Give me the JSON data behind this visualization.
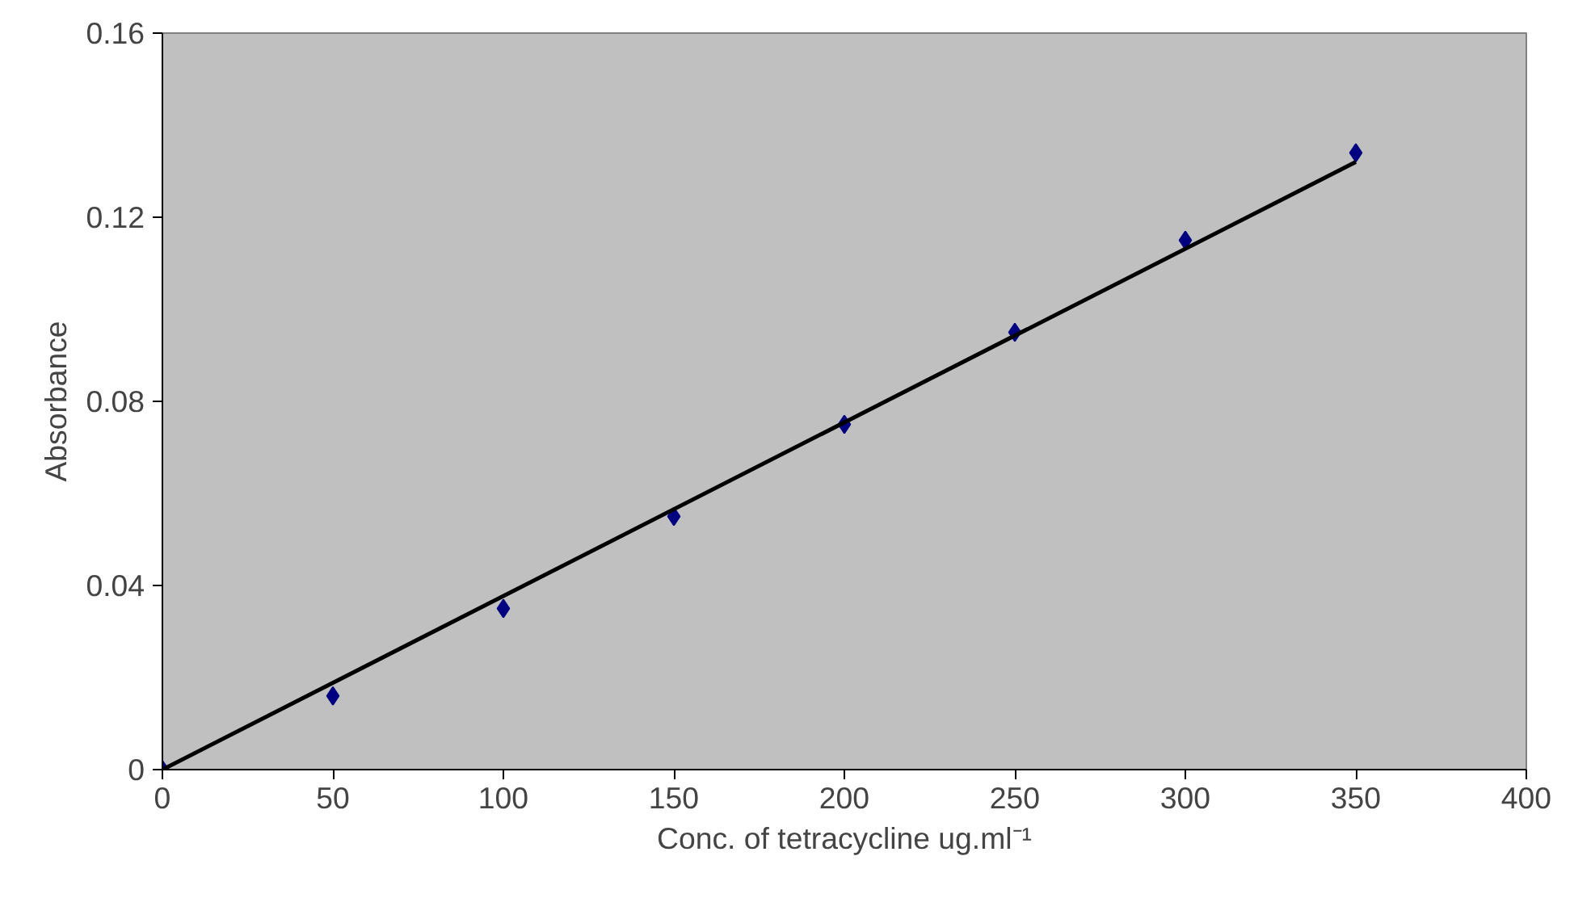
{
  "chart_data": {
    "type": "scatter",
    "xlabel": "Conc. of tetracycline ug.ml⁻¹",
    "ylabel": "Absorbance",
    "series": [
      {
        "color": "#000080",
        "x": [
          0,
          50,
          100,
          150,
          200,
          250,
          300,
          350
        ],
        "values": [
          0,
          0.016,
          0.035,
          0.055,
          0.075,
          0.095,
          0.115,
          0.134
        ],
        "marker": "diamond"
      },
      {
        "type": "line",
        "color": "#000000",
        "x": [
          0,
          350
        ],
        "values": [
          0,
          0.132
        ],
        "line_style": "solid"
      }
    ],
    "xlim": [
      0,
      400
    ],
    "xticks": [
      0,
      50,
      100,
      150,
      200,
      250,
      300,
      350,
      400
    ],
    "ylim": [
      0,
      0.16
    ],
    "yticks": [
      0,
      0.04,
      0.08,
      0.12,
      0.16
    ],
    "grid": false
  }
}
